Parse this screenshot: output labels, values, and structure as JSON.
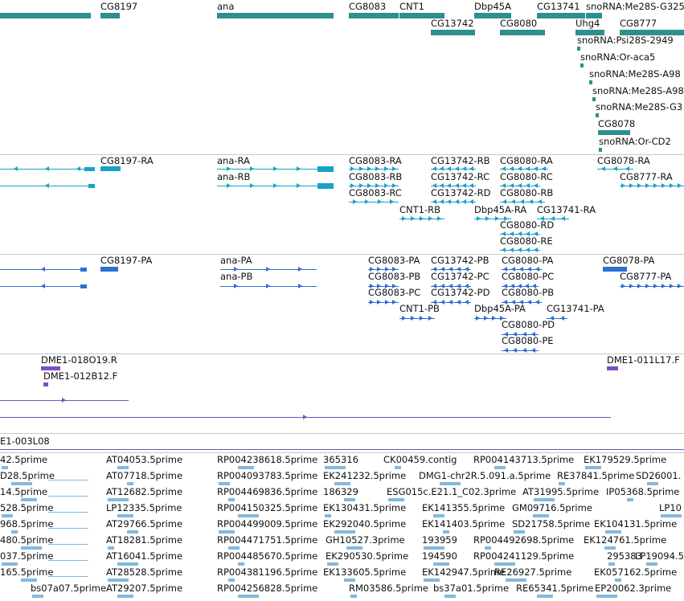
{
  "colors": {
    "gene": "#2e8f8f",
    "transcript": "#17a2c8",
    "protein": "#2f6fd0",
    "clone": "#7b4fc4",
    "est": "#84b8de",
    "separator": "#c8c8c8"
  },
  "tracks": {
    "genes": {
      "features": [
        {
          "label": ""
        },
        {
          "label": "CG8197"
        },
        {
          "label": "ana"
        },
        {
          "label": "CG8083"
        },
        {
          "label": "CNT1"
        },
        {
          "label": "Dbp45A"
        },
        {
          "label": "CG13741"
        },
        {
          "label": "snoRNA:Me28S-G325"
        },
        {
          "label": "CG13742"
        },
        {
          "label": "CG8080"
        },
        {
          "label": "Uhg4"
        },
        {
          "label": "CG8777"
        },
        {
          "label": "snoRNA:Psi28S-2949"
        },
        {
          "label": "snoRNA:Or-aca5"
        },
        {
          "label": "snoRNA:Me28S-A98"
        },
        {
          "label": "snoRNA:Me28S-A98"
        },
        {
          "label": "snoRNA:Me28S-G3"
        },
        {
          "label": "CG8078"
        },
        {
          "label": "snoRNA:Or-CD2"
        }
      ]
    },
    "transcripts": {
      "features": [
        {
          "label": ""
        },
        {
          "label": ""
        },
        {
          "label": "CG8197-RA"
        },
        {
          "label": "ana-RA"
        },
        {
          "label": "ana-RB"
        },
        {
          "label": "CG8083-RA"
        },
        {
          "label": "CG8083-RB"
        },
        {
          "label": "CG8083-RC"
        },
        {
          "label": "CG13742-RB"
        },
        {
          "label": "CG13742-RC"
        },
        {
          "label": "CG13742-RD"
        },
        {
          "label": "CG8080-RA"
        },
        {
          "label": "CG8080-RC"
        },
        {
          "label": "CG8080-RB"
        },
        {
          "label": "CNT1-RB"
        },
        {
          "label": "Dbp45A-RA"
        },
        {
          "label": "CG13741-RA"
        },
        {
          "label": "CG8080-RD"
        },
        {
          "label": "CG8080-RE"
        },
        {
          "label": "CG8078-RA"
        },
        {
          "label": "CG8777-RA"
        }
      ]
    },
    "proteins": {
      "features": [
        {
          "label": ""
        },
        {
          "label": ""
        },
        {
          "label": "CG8197-PA"
        },
        {
          "label": "ana-PA"
        },
        {
          "label": "ana-PB"
        },
        {
          "label": "CG8083-PA"
        },
        {
          "label": "CG8083-PB"
        },
        {
          "label": "CG8083-PC"
        },
        {
          "label": "CG13742-PB"
        },
        {
          "label": "CG13742-PC"
        },
        {
          "label": "CG13742-PD"
        },
        {
          "label": "CG8080-PA"
        },
        {
          "label": "CG8080-PC"
        },
        {
          "label": "CG8080-PB"
        },
        {
          "label": "CNT1-PB"
        },
        {
          "label": "Dbp45A-PA"
        },
        {
          "label": "CG13741-PA"
        },
        {
          "label": "CG8080-PD"
        },
        {
          "label": "CG8080-PE"
        },
        {
          "label": "CG8078-PA"
        },
        {
          "label": "CG8777-PA"
        }
      ]
    },
    "clones": {
      "features": [
        {
          "label": "DME1-018O19.R"
        },
        {
          "label": "DME1-012B12.F"
        },
        {
          "label": "DME1-011L17.F"
        },
        {
          "label": ""
        },
        {
          "label": ""
        }
      ]
    },
    "scaffold": {
      "label": "E1-003L08"
    },
    "ests": {
      "features": [
        {
          "label": "42.5prime"
        },
        {
          "label": "AT04053.5prime"
        },
        {
          "label": "RP004238618.5prime"
        },
        {
          "label": "365316"
        },
        {
          "label": "CK00459.contig"
        },
        {
          "label": "RP004143713.5prime"
        },
        {
          "label": "EK179529.5prime"
        },
        {
          "label": "D28.5prime"
        },
        {
          "label": "AT07718.5prime"
        },
        {
          "label": "RP004093783.5prime"
        },
        {
          "label": "EK241232.5prime"
        },
        {
          "label": "DMG1-chr2R.5.091.a.5prime"
        },
        {
          "label": "RE37841.5prime"
        },
        {
          "label": "SD26001."
        },
        {
          "label": "14.5prime"
        },
        {
          "label": "AT12682.5prime"
        },
        {
          "label": "RP004469836.5prime"
        },
        {
          "label": "186329"
        },
        {
          "label": "ESG015c.E21.1_C02.3prime"
        },
        {
          "label": "AT31995.5prime"
        },
        {
          "label": "IP05368.5prime"
        },
        {
          "label": "528.5prime"
        },
        {
          "label": "LP12335.5prime"
        },
        {
          "label": "RP004150325.5prime"
        },
        {
          "label": "EK130431.5prime"
        },
        {
          "label": "EK141355.5prime"
        },
        {
          "label": "GM09716.5prime"
        },
        {
          "label": "LP10"
        },
        {
          "label": "968.5prime"
        },
        {
          "label": "AT29766.5prime"
        },
        {
          "label": "RP004499009.5prime"
        },
        {
          "label": "EK292040.5prime"
        },
        {
          "label": "EK141403.5prime"
        },
        {
          "label": "SD21758.5prime"
        },
        {
          "label": "EK104131.5prime"
        },
        {
          "label": "480.5prime"
        },
        {
          "label": "AT18281.5prime"
        },
        {
          "label": "RP004471751.5prime"
        },
        {
          "label": "GH10527.3prime"
        },
        {
          "label": "193959"
        },
        {
          "label": "RP004492698.5prime"
        },
        {
          "label": "EK124761.5prime"
        },
        {
          "label": "037.5prime"
        },
        {
          "label": "AT16041.5prime"
        },
        {
          "label": "RP004485670.5prime"
        },
        {
          "label": "EK290530.5prime"
        },
        {
          "label": "194590"
        },
        {
          "label": "RP004241129.5prime"
        },
        {
          "label": "295383"
        },
        {
          "label": "LP19094.5p"
        },
        {
          "label": "165.5prime"
        },
        {
          "label": "AT28528.5prime"
        },
        {
          "label": "RP004381196.5prime"
        },
        {
          "label": "EK133605.5prime"
        },
        {
          "label": "EK142947.5prime"
        },
        {
          "label": "RE26927.5prime"
        },
        {
          "label": "EK057162.5prime"
        },
        {
          "label": "bs07a07.5prime"
        },
        {
          "label": "AT29207.5prime"
        },
        {
          "label": "RP004256828.5prime"
        },
        {
          "label": "RM03586.5prime"
        },
        {
          "label": "bs37a01.5prime"
        },
        {
          "label": "RE65341.5prime"
        },
        {
          "label": "EP20062.3prime"
        }
      ]
    }
  }
}
